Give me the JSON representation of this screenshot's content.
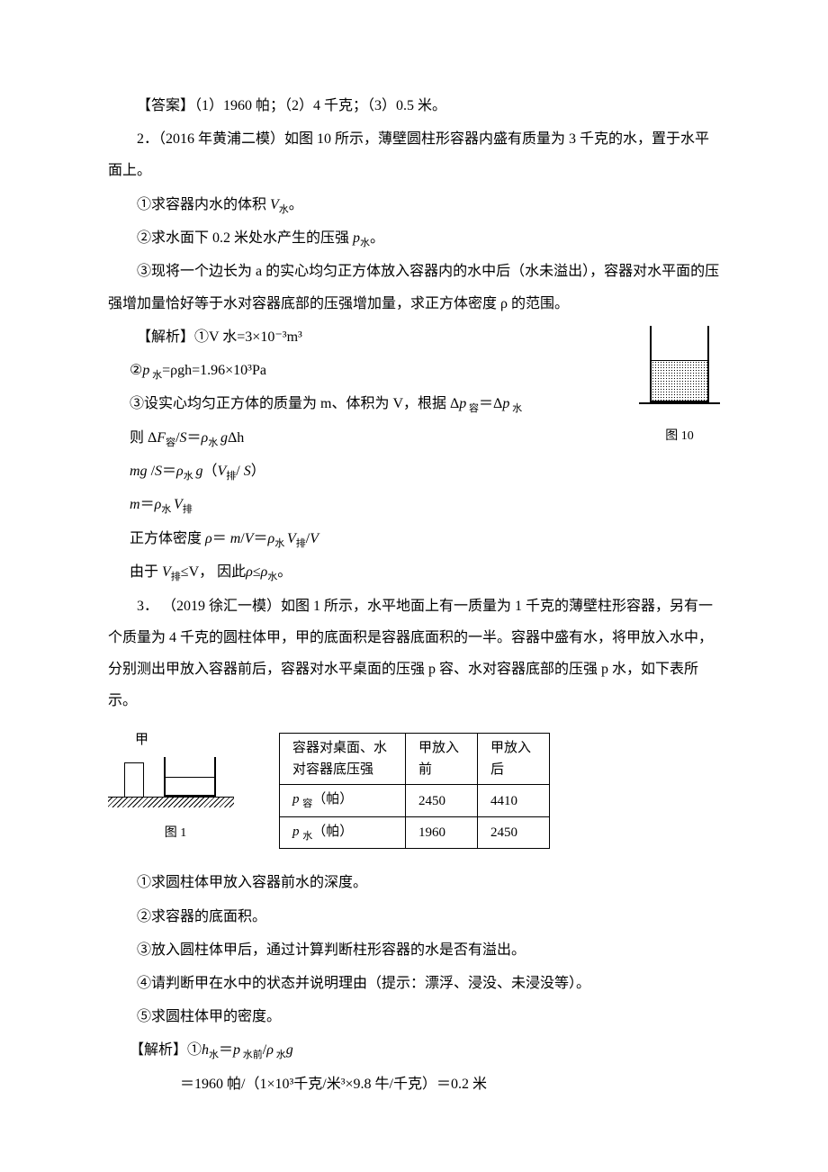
{
  "answer1": "【答案】（1）1960 帕；（2）4 千克；（3）0.5 米。",
  "problem2": {
    "intro": "2．（2016 年黄浦二模）如图 10 所示，薄壁圆柱形容器内盛有质量为 3 千克的水，置于水平面上。",
    "q1_pre": "①求容器内水的体积 ",
    "q1_var": "V",
    "q1_sub": "水",
    "q1_end": "。",
    "q2_pre": "②求水面下 0.2 米处水产生的压强 ",
    "q2_var": "p",
    "q2_sub": "水",
    "q2_end": "。",
    "q3": "③现将一个边长为 a 的实心均匀正方体放入容器内的水中后（水未溢出），容器对水平面的压强增加量恰好等于水对容器底部的压强增加量，求正方体密度 ρ 的范围。",
    "sol_label": "【解析】",
    "sol1": "①V 水=3×10⁻³m³",
    "sol2_pre": "②",
    "sol2_var": "p",
    "sol2_sub": " 水",
    "sol2_eq": "=ρgh=1.96×10³Pa",
    "sol3_pre": "③设实心均匀正方体的质量为 m、体积为 V，根据 Δ",
    "sol3_p1": "p",
    "sol3_sub1": " 容",
    "sol3_mid": "＝Δ",
    "sol3_p2": "p",
    "sol3_sub2": " 水",
    "sol4_pre": "则 Δ",
    "sol4_F": "F",
    "sol4_Fsub": "容",
    "sol4_mid": "/",
    "sol4_S1": "S",
    "sol4_eq": "＝",
    "sol4_rho": "ρ",
    "sol4_rhosub": "水 ",
    "sol4_g": "g",
    "sol4_dh": "Δh",
    "sol5_mg": "mg",
    "sol5_slash": " /",
    "sol5_S": "S",
    "sol5_eq": "＝",
    "sol5_rho": "ρ",
    "sol5_rhosub": "水 ",
    "sol5_g": "g",
    "sol5_paren1": "（",
    "sol5_V": "V",
    "sol5_Vsub": "排",
    "sol5_slash2": "/ ",
    "sol5_S2": " S",
    "sol5_paren2": "）",
    "sol6_m": "m",
    "sol6_eq": "＝",
    "sol6_rho": "ρ",
    "sol6_rhosub": "水 ",
    "sol6_V": "V",
    "sol6_Vsub": "排",
    "sol7": "正方体密度 ρ＝ m/V＝ρ水 V排/V",
    "sol8_pre": "由于 ",
    "sol8_V": "V",
    "sol8_Vsub": "排",
    "sol8_le": "≤V，  因此",
    "sol8_rho1": "ρ",
    "sol8_le2": "≤",
    "sol8_rho2": "ρ",
    "sol8_rhosub": "水",
    "sol8_end": "。",
    "fig_label": "图 10"
  },
  "problem3": {
    "intro": "3． （2019 徐汇一模）如图 1 所示，水平地面上有一质量为 1 千克的薄壁柱形容器，另有一个质量为 4 千克的圆柱体甲，甲的底面积是容器底面积的一半。容器中盛有水，将甲放入水中，分别测出甲放入容器前后，容器对水平桌面的压强 p 容、水对容器底部的压强 p 水，如下表所示。",
    "fig_top_label": "甲",
    "fig_caption": "图 1",
    "table": {
      "header1": "容器对桌面、水对容器底压强",
      "header2": "甲放入前",
      "header3": "甲放入后",
      "row1_label": "p 容（帕）",
      "row1_v1": "2450",
      "row1_v2": "4410",
      "row2_label": "p 水（帕）",
      "row2_v1": "1960",
      "row2_v2": "2450"
    },
    "q1": "①求圆柱体甲放入容器前水的深度。",
    "q2": "②求容器的底面积。",
    "q3": "③放入圆柱体甲后，通过计算判断柱形容器的水是否有溢出。",
    "q4": "④请判断甲在水中的状态并说明理由（提示：漂浮、浸没、未浸没等）。",
    "q5": "⑤求圆柱体甲的密度。",
    "sol_label": "【解析】",
    "sol1_pre": "①",
    "sol1_h": "h",
    "sol1_hsub": "水",
    "sol1_eq": "＝",
    "sol1_p": "p",
    "sol1_psub": " 水前",
    "sol1_slash": "/",
    "sol1_rho": "ρ",
    "sol1_rhosub": " 水",
    "sol1_g": "g",
    "sol2": "＝1960 帕/（1×10³千克/米³×9.8 牛/千克）＝0.2 米"
  }
}
